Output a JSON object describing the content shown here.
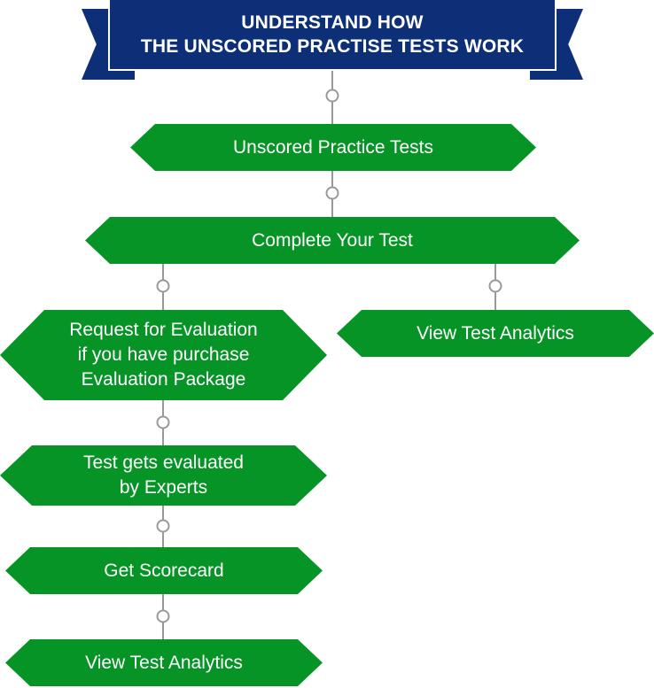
{
  "header": {
    "title_lines": [
      "UNDERSTAND HOW",
      "THE UNSCORED PRACTISE TESTS WORK"
    ]
  },
  "nodes": {
    "unscored_tests": {
      "lines": [
        "Unscored Practice Tests"
      ]
    },
    "complete_test": {
      "lines": [
        "Complete Your Test"
      ]
    },
    "view_analytics_right": {
      "lines": [
        "View Test Analytics"
      ]
    },
    "request_evaluation": {
      "lines": [
        "Request for Evaluation",
        "if you have purchase",
        "Evaluation Package"
      ]
    },
    "evaluated_by_experts": {
      "lines": [
        "Test gets evaluated",
        "by Experts"
      ]
    },
    "get_scorecard": {
      "lines": [
        "Get Scorecard"
      ]
    },
    "view_analytics_bottom": {
      "lines": [
        "View Test Analytics"
      ]
    }
  },
  "colors": {
    "banner": "#0d2f78",
    "node": "#079427",
    "connector": "#999999"
  }
}
